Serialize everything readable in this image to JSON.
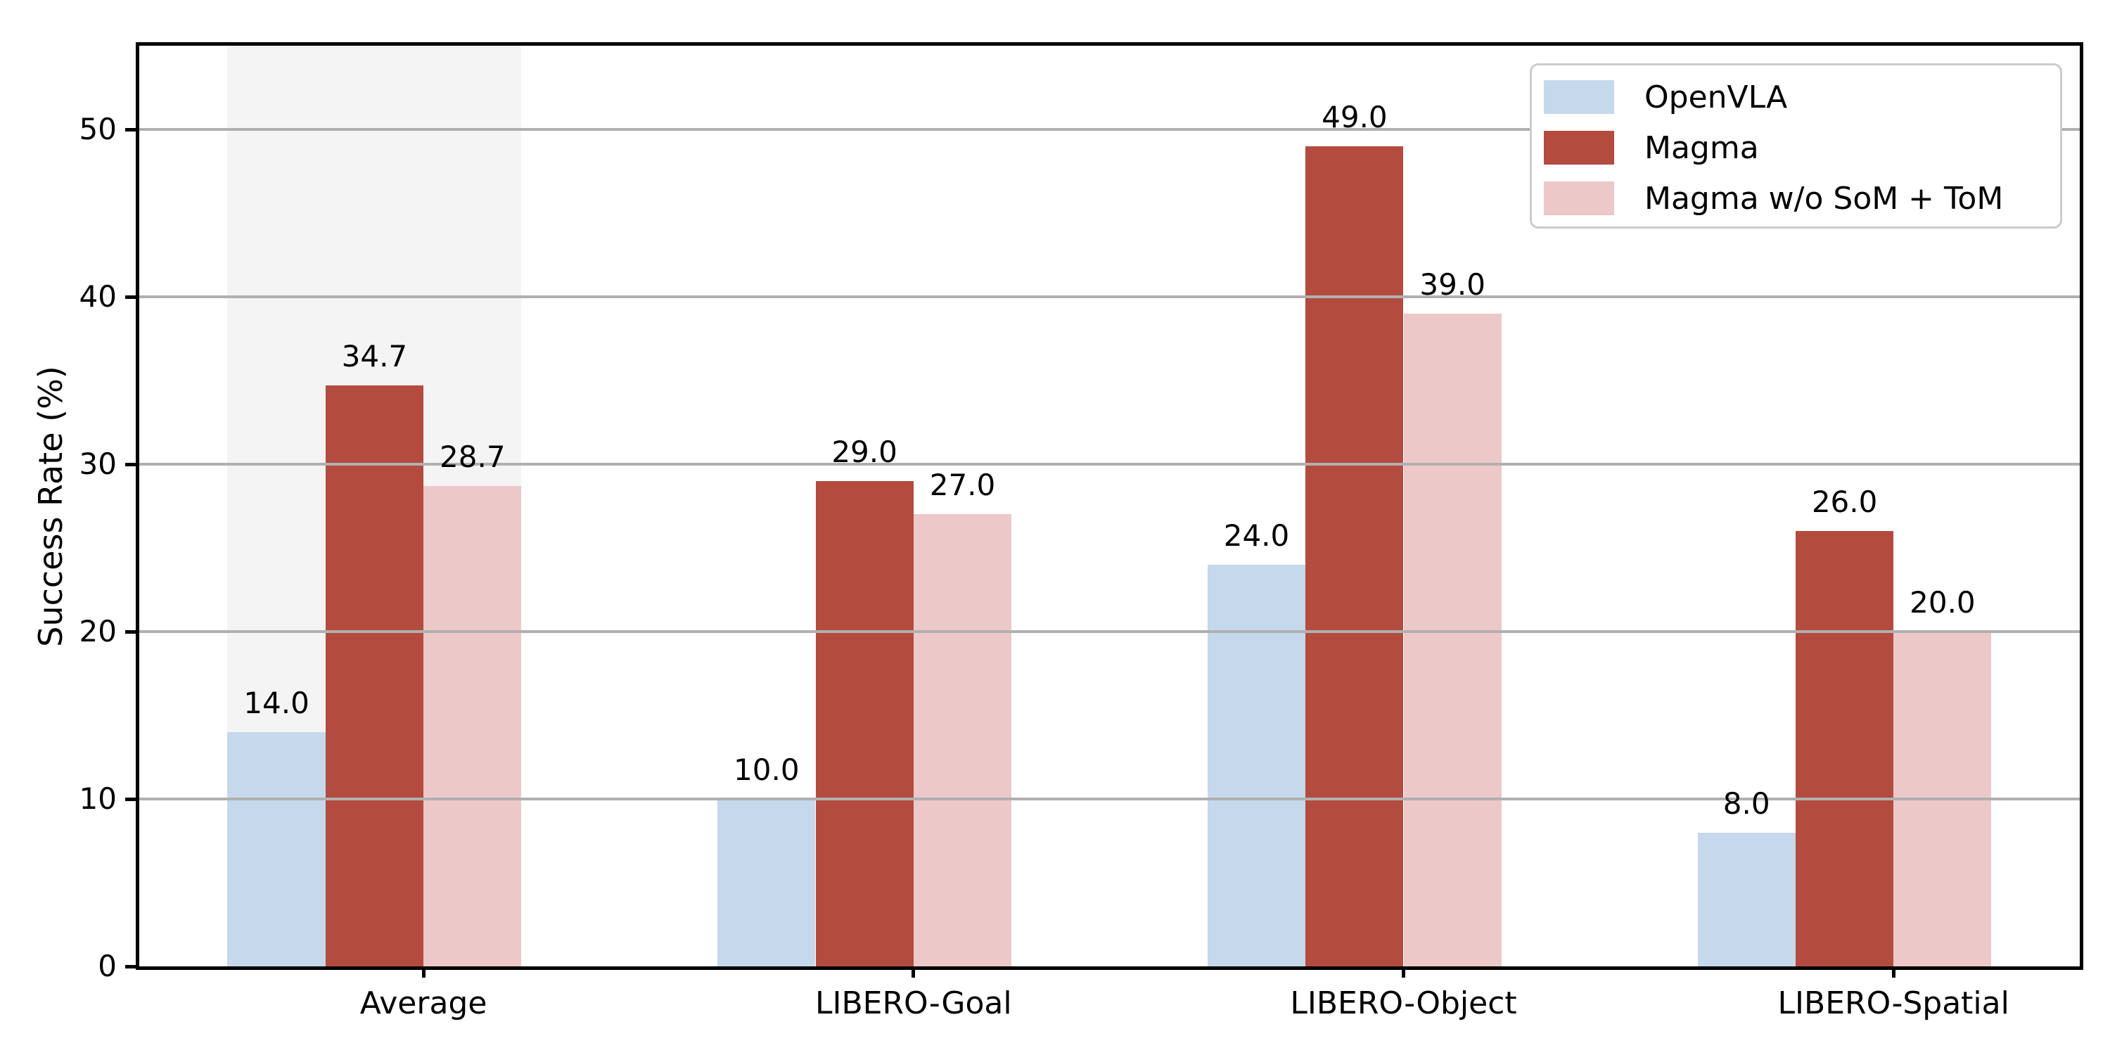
{
  "chart_data": {
    "type": "bar",
    "title": "",
    "xlabel": "",
    "ylabel": "Success Rate (%)",
    "categories": [
      "Average",
      "LIBERO-Goal",
      "LIBERO-Object",
      "LIBERO-Spatial"
    ],
    "series": [
      {
        "name": "OpenVLA",
        "color": "#c5d8ec",
        "values": [
          14.0,
          10.0,
          24.0,
          8.0
        ],
        "labels": [
          "14.0",
          "10.0",
          "24.0",
          "8.0"
        ]
      },
      {
        "name": "Magma",
        "color": "#b34b3f",
        "values": [
          34.7,
          29.0,
          49.0,
          26.0
        ],
        "labels": [
          "34.7",
          "29.0",
          "49.0",
          "26.0"
        ]
      },
      {
        "name": "Magma w/o SoM + ToM",
        "color": "#edc8c9",
        "values": [
          28.7,
          27.0,
          39.0,
          20.0
        ],
        "labels": [
          "28.7",
          "27.0",
          "39.0",
          "20.0"
        ]
      }
    ],
    "yticks": [
      "0",
      "10",
      "20",
      "30",
      "40",
      "50"
    ],
    "ytick_values": [
      0,
      10,
      20,
      30,
      40,
      50
    ],
    "ylim": [
      0,
      55
    ],
    "grid": true,
    "grid_over_bars": true,
    "legend_position": "upper right",
    "highlight": {
      "category": "Average",
      "color": "#f4f4f4"
    },
    "colors": {
      "spine": "#000000",
      "grid": "#b0b0b0",
      "text": "#000000",
      "legend_border": "#cccccc",
      "background": "#ffffff"
    }
  }
}
